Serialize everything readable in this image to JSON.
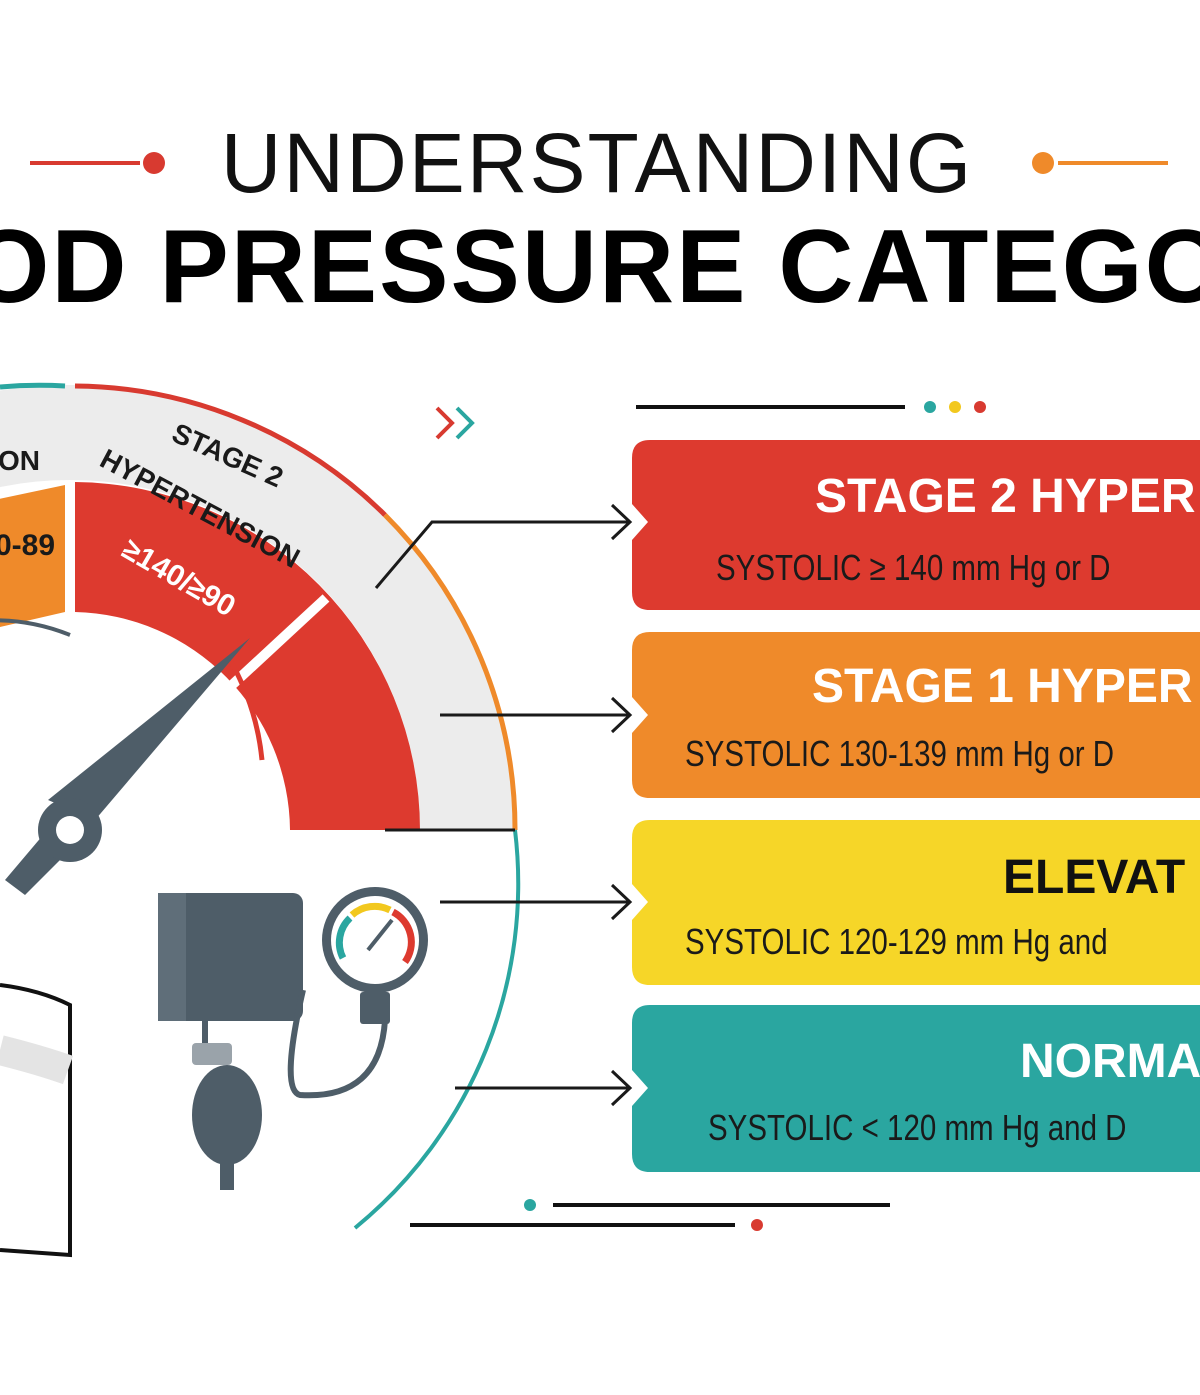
{
  "header": {
    "title": "UNDERSTANDING",
    "subtitle": "OD PRESSURE CATEGO"
  },
  "gauge": {
    "left_label": "ON",
    "left_range": "0-89",
    "segment_label_line1": "STAGE 2",
    "segment_label_line2": "HYPERTENSION",
    "segment_range": "≥140/≥90"
  },
  "cards": [
    {
      "title": "STAGE 2 HYPER",
      "detail": "SYSTOLIC ≥ 140 mm Hg  or  D"
    },
    {
      "title": "STAGE 1 HYPER",
      "detail": "SYSTOLIC 130-139 mm Hg or D"
    },
    {
      "title": "ELEVAT",
      "detail": "SYSTOLIC 120-129 mm Hg and"
    },
    {
      "title": "NORMA",
      "detail": "SYSTOLIC < 120 mm Hg and D"
    }
  ]
}
